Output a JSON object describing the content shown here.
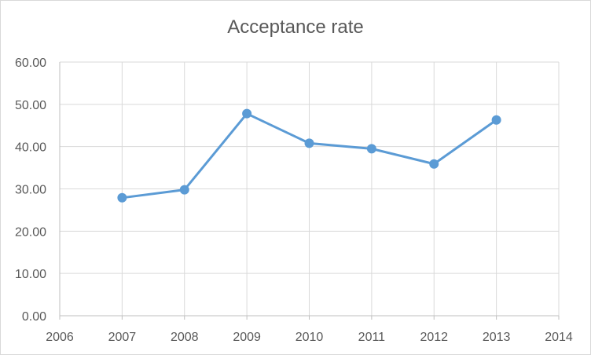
{
  "chart_data": {
    "type": "scatter",
    "title": "Acceptance rate",
    "xlabel": "",
    "ylabel": "",
    "xlim": [
      2006,
      2014
    ],
    "ylim": [
      0,
      60
    ],
    "x_ticks": [
      "2006",
      "2007",
      "2008",
      "2009",
      "2010",
      "2011",
      "2012",
      "2013",
      "2014"
    ],
    "y_ticks": [
      "0.00",
      "10.00",
      "20.00",
      "30.00",
      "40.00",
      "50.00",
      "60.00"
    ],
    "grid": true,
    "legend": "none",
    "marker": "circle",
    "line": "straight",
    "series": [
      {
        "x": [
          2007,
          2008,
          2009,
          2010,
          2011,
          2012,
          2013
        ],
        "y": [
          27.9,
          29.8,
          47.8,
          40.8,
          39.5,
          35.9,
          46.3
        ],
        "color": "#5b9bd5"
      }
    ]
  }
}
